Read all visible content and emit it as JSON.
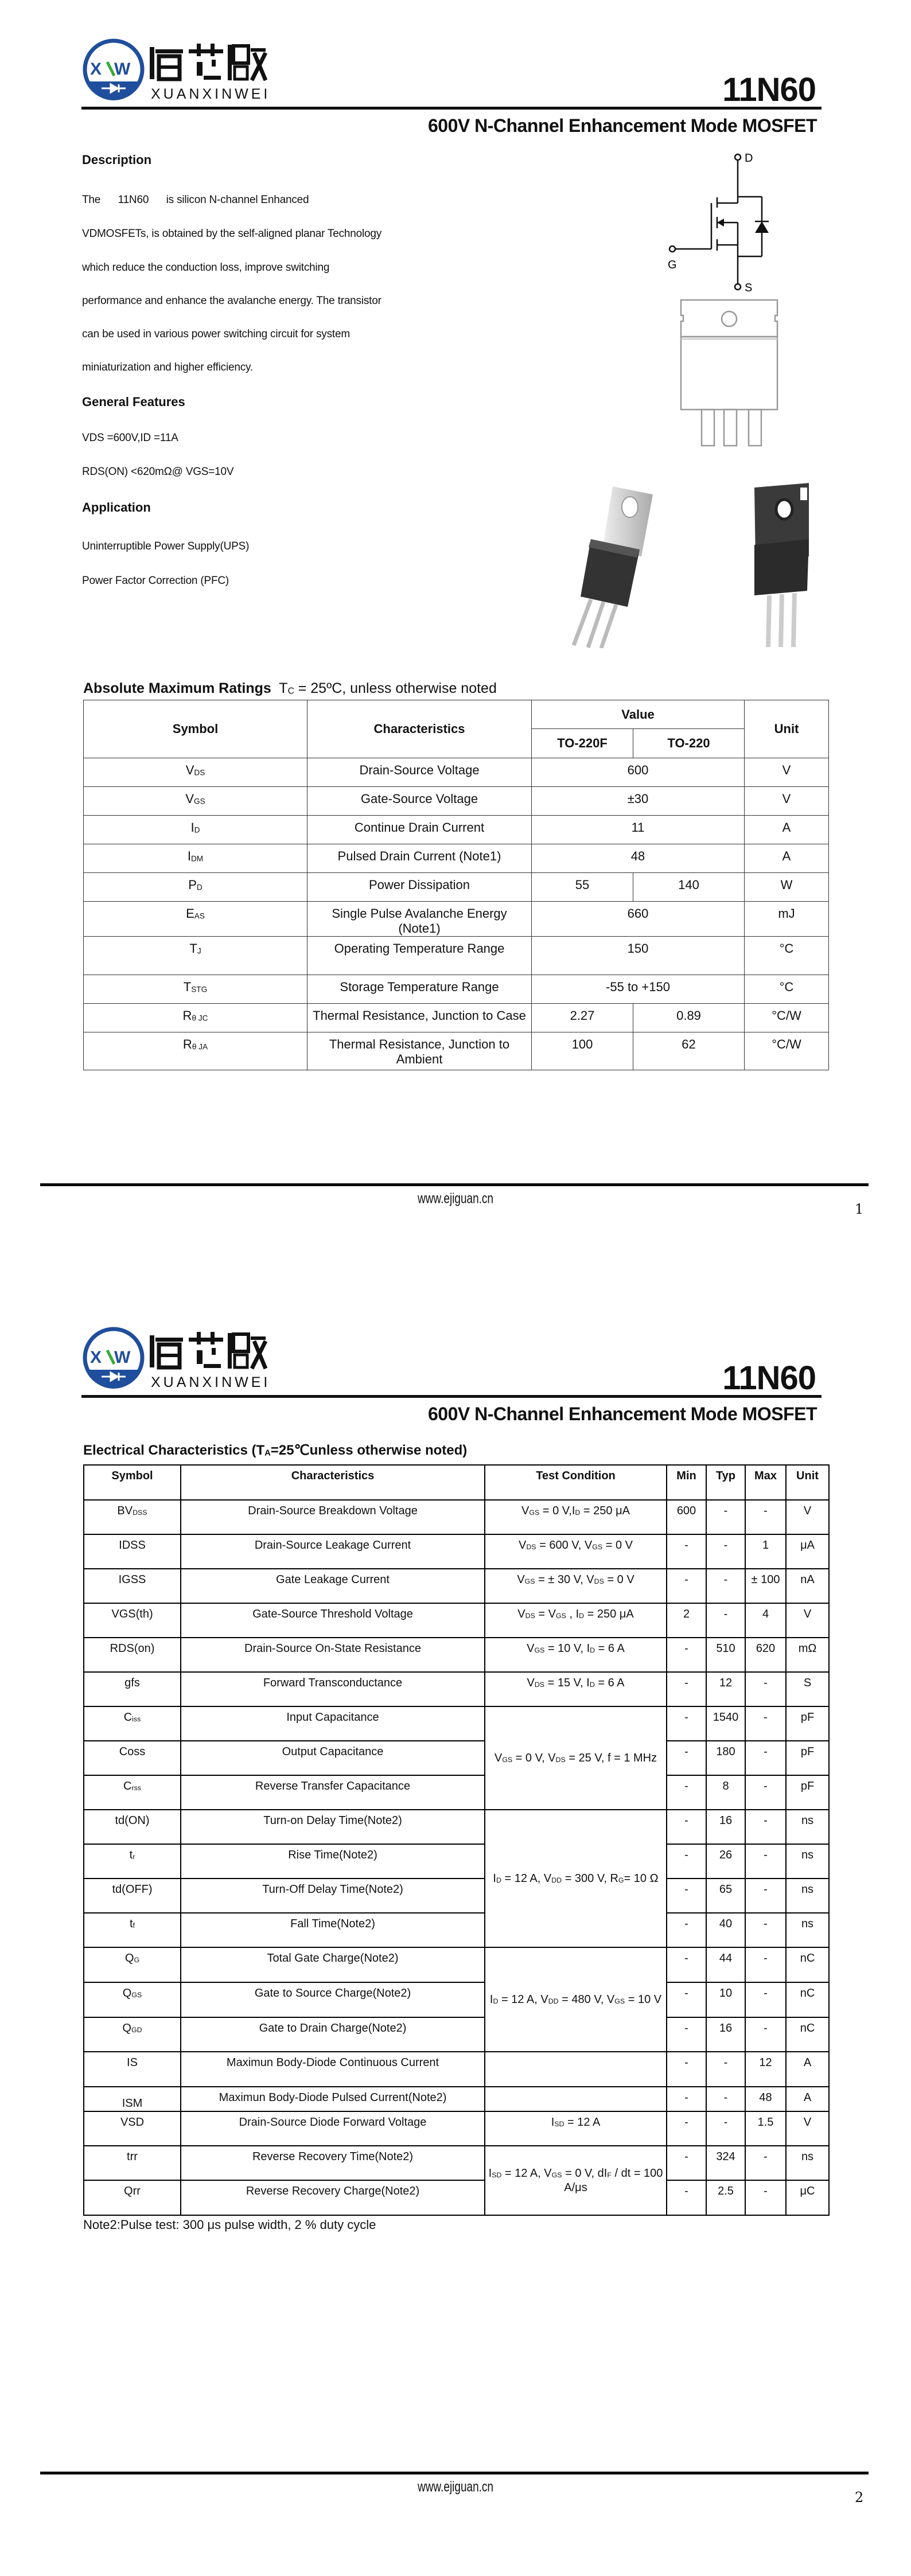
{
  "brand": {
    "logo_mark": "XW",
    "logo_cn": "烜芯微",
    "logo_en": "XUANXINWEI",
    "blue": "#1f4e9c",
    "green": "#3aa935"
  },
  "header": {
    "part_number": "11N60",
    "subtitle": "600V N-Channel Enhancement Mode MOSFET"
  },
  "page1": {
    "description_heading": "Description",
    "description_lines": [
      "The      11N60      is silicon N-channel Enhanced",
      "VDMOSFETs, is obtained by the self-aligned planar Technology",
      "which reduce the conduction loss, improve switching",
      "performance and enhance the avalanche energy. The transistor",
      "can be used in various power switching circuit for system",
      "miniaturization and higher efficiency."
    ],
    "features_heading": "General Features",
    "features": [
      "VDS =600V,ID =11A",
      "RDS(ON) <620mΩ@ VGS=10V"
    ],
    "application_heading": "Application",
    "applications": [
      "Uninterruptible Power Supply(UPS)",
      "Power Factor Correction (PFC)"
    ],
    "schematic": {
      "drain": "D",
      "gate": "G",
      "source": "S"
    },
    "amr": {
      "title": "Absolute Maximum Ratings",
      "condition_main": "T",
      "condition_sub": "C",
      "condition_rest": " = 25ºC, unless otherwise noted",
      "headers": {
        "symbol": "Symbol",
        "characteristics": "Characteristics",
        "value": "Value",
        "pkg1": "TO-220F",
        "pkg2": "TO-220",
        "unit": "Unit"
      },
      "rows": [
        {
          "sym": "V",
          "sub": "DS",
          "char": "Drain-Source Voltage",
          "values": [
            "600"
          ],
          "unit": "V"
        },
        {
          "sym": "V",
          "sub": "GS",
          "char": "Gate-Source Voltage",
          "values": [
            "±30"
          ],
          "unit": "V"
        },
        {
          "sym": "I",
          "sub": "D",
          "char": "Continue Drain Current",
          "values": [
            "11"
          ],
          "unit": "A"
        },
        {
          "sym": "I",
          "sub": "DM",
          "char": "Pulsed Drain Current (Note1)",
          "values": [
            "48"
          ],
          "unit": "A"
        },
        {
          "sym": "P",
          "sub": "D",
          "char": "Power Dissipation",
          "values": [
            "55",
            "140"
          ],
          "unit": "W"
        },
        {
          "sym": "E",
          "sub": "AS",
          "char": "Single Pulse Avalanche Energy (Note1)",
          "values": [
            "660"
          ],
          "unit": "mJ"
        },
        {
          "sym": "T",
          "sub": "J",
          "char": "Operating Temperature Range",
          "values": [
            "150"
          ],
          "unit": "°C"
        },
        {
          "sym": "T",
          "sub": "STG",
          "char": "Storage Temperature Range",
          "values": [
            "-55 to +150"
          ],
          "unit": "°C"
        },
        {
          "sym": "R",
          "sub": "θ JC",
          "char": "Thermal Resistance, Junction to Case",
          "values": [
            "2.27",
            "0.89"
          ],
          "unit": "°C/W"
        },
        {
          "sym": "R",
          "sub": "θ JA",
          "char": "Thermal Resistance, Junction to Ambient",
          "values": [
            "100",
            "62"
          ],
          "unit": "°C/W"
        }
      ]
    },
    "footer": {
      "url": "www.ejiguan.cn",
      "page": "1"
    }
  },
  "page2": {
    "ec": {
      "title": [
        {
          "t": "Electrical Characteristics (T"
        },
        {
          "s": "A"
        },
        {
          "t": "=25℃unless otherwise noted)"
        }
      ],
      "headers": [
        "Symbol",
        "Characteristics",
        "Test Condition",
        "Min",
        "Typ",
        "Max",
        "Unit"
      ],
      "rows": [
        {
          "sym": [
            {
              "t": "BV"
            },
            {
              "s": "DSS"
            }
          ],
          "char": "Drain-Source Breakdown Voltage",
          "cond": [
            {
              "t": "V"
            },
            {
              "s": "GS"
            },
            {
              "t": " = 0 V,I"
            },
            {
              "s": "D"
            },
            {
              "t": " = 250 μA"
            }
          ],
          "span": 1,
          "min": "600",
          "typ": "-",
          "max": "-",
          "unit": "V"
        },
        {
          "sym": [
            {
              "t": "IDSS"
            }
          ],
          "char": "Drain-Source Leakage Current",
          "cond": [
            {
              "t": "V"
            },
            {
              "s": "DS"
            },
            {
              "t": " = 600 V, V"
            },
            {
              "s": "GS"
            },
            {
              "t": " = 0 V"
            }
          ],
          "span": 1,
          "min": "-",
          "typ": "-",
          "max": "1",
          "unit": "μA"
        },
        {
          "sym": [
            {
              "t": "IGSS"
            }
          ],
          "char": "Gate Leakage Current",
          "cond": [
            {
              "t": "V"
            },
            {
              "s": "GS"
            },
            {
              "t": " = ± 30 V, V"
            },
            {
              "s": "DS"
            },
            {
              "t": " = 0 V"
            }
          ],
          "span": 1,
          "min": "-",
          "typ": "-",
          "max": "± 100",
          "unit": "nA"
        },
        {
          "sym": [
            {
              "t": "VGS(th)"
            }
          ],
          "char": "Gate-Source Threshold Voltage",
          "cond": [
            {
              "t": "V"
            },
            {
              "s": "DS"
            },
            {
              "t": " = V"
            },
            {
              "s": "GS"
            },
            {
              "t": " , I"
            },
            {
              "s": "D"
            },
            {
              "t": "  = 250 μA"
            }
          ],
          "span": 1,
          "min": "2",
          "typ": "-",
          "max": "4",
          "unit": "V"
        },
        {
          "sym": [
            {
              "t": "RDS(on)"
            }
          ],
          "char": "Drain-Source On-State Resistance",
          "cond": [
            {
              "t": "V"
            },
            {
              "s": "GS"
            },
            {
              "t": " = 10 V, I"
            },
            {
              "s": "D"
            },
            {
              "t": " = 6 A"
            }
          ],
          "span": 1,
          "min": "-",
          "typ": "510",
          "max": "620",
          "unit": "mΩ"
        },
        {
          "sym": [
            {
              "t": "gfs"
            }
          ],
          "char": "Forward Transconductance",
          "cond": [
            {
              "t": "V"
            },
            {
              "s": "DS"
            },
            {
              "t": " = 15 V, I"
            },
            {
              "s": "D"
            },
            {
              "t": " = 6 A"
            }
          ],
          "span": 1,
          "min": "-",
          "typ": "12",
          "max": "-",
          "unit": "S"
        },
        {
          "sym": [
            {
              "t": "C"
            },
            {
              "s": "iss"
            }
          ],
          "char": "Input Capacitance",
          "cond": [
            {
              "t": "V"
            },
            {
              "s": "GS"
            },
            {
              "t": " = 0 V, V"
            },
            {
              "s": "DS"
            },
            {
              "t": " = 25 V,  f = 1 MHz"
            }
          ],
          "span": 3,
          "min": "-",
          "typ": "1540",
          "max": "-",
          "unit": "pF"
        },
        {
          "sym": [
            {
              "t": "Coss"
            }
          ],
          "char": "Output Capacitance",
          "cond": null,
          "min": "-",
          "typ": "180",
          "max": "-",
          "unit": "pF"
        },
        {
          "sym": [
            {
              "t": "C"
            },
            {
              "s": "rss"
            }
          ],
          "char": "Reverse Transfer Capacitance",
          "cond": null,
          "min": "-",
          "typ": "8",
          "max": "-",
          "unit": "pF"
        },
        {
          "sym": [
            {
              "t": "td(ON)"
            }
          ],
          "char": "Turn-on Delay Time(Note2)",
          "cond": [
            {
              "t": "I"
            },
            {
              "s": "D"
            },
            {
              "t": " = 12 A, V"
            },
            {
              "s": "DD"
            },
            {
              "t": " = 300 V, R"
            },
            {
              "s": "G"
            },
            {
              "t": "= 10 Ω"
            }
          ],
          "span": 4,
          "min": "-",
          "typ": "16",
          "max": "-",
          "unit": "ns"
        },
        {
          "sym": [
            {
              "t": "t"
            },
            {
              "s": "r"
            }
          ],
          "char": "Rise Time(Note2)",
          "cond": null,
          "min": "-",
          "typ": "26",
          "max": "-",
          "unit": "ns"
        },
        {
          "sym": [
            {
              "t": "td(OFF)"
            }
          ],
          "char": "Turn-Off Delay Time(Note2)",
          "cond": null,
          "min": "-",
          "typ": "65",
          "max": "-",
          "unit": "ns"
        },
        {
          "sym": [
            {
              "t": "t"
            },
            {
              "s": "f"
            }
          ],
          "char": "Fall Time(Note2)",
          "cond": null,
          "min": "-",
          "typ": "40",
          "max": "-",
          "unit": "ns"
        },
        {
          "sym": [
            {
              "t": "Q"
            },
            {
              "s": "G"
            }
          ],
          "char": "Total Gate Charge(Note2)",
          "cond": [
            {
              "t": "I"
            },
            {
              "s": "D"
            },
            {
              "t": " = 12 A, V"
            },
            {
              "s": "DD"
            },
            {
              "t": " = 480 V, V"
            },
            {
              "s": "GS"
            },
            {
              "t": " = 10 V"
            }
          ],
          "span": 3,
          "min": "-",
          "typ": "44",
          "max": "-",
          "unit": "nC"
        },
        {
          "sym": [
            {
              "t": "Q"
            },
            {
              "s": "GS"
            }
          ],
          "char": "Gate to Source Charge(Note2)",
          "cond": null,
          "min": "-",
          "typ": "10",
          "max": "-",
          "unit": "nC"
        },
        {
          "sym": [
            {
              "t": "Q"
            },
            {
              "s": "GD"
            }
          ],
          "char": "Gate to Drain Charge(Note2)",
          "cond": null,
          "min": "-",
          "typ": "16",
          "max": "-",
          "unit": "nC"
        },
        {
          "sym": [
            {
              "t": "IS"
            }
          ],
          "char": "Maximun Body-Diode Continuous Current",
          "cond": [],
          "span": 1,
          "min": "-",
          "typ": "-",
          "max": "12",
          "unit": "A"
        },
        {
          "sym": [
            {
              "t": "ISM"
            }
          ],
          "char": "Maximun Body-Diode  Pulsed Current(Note2)",
          "cond": [],
          "span": 1,
          "min": "-",
          "typ": "-",
          "max": "48",
          "unit": "A"
        },
        {
          "sym": [
            {
              "t": "VSD"
            }
          ],
          "char": "Drain-Source Diode Forward Voltage",
          "cond": [
            {
              "t": "I"
            },
            {
              "s": "SD"
            },
            {
              "t": "  = 12 A"
            }
          ],
          "span": 1,
          "min": "-",
          "typ": "-",
          "max": "1.5",
          "unit": "V"
        },
        {
          "sym": [
            {
              "t": "trr"
            }
          ],
          "char": "Reverse Recovery Time(Note2)",
          "cond": [
            {
              "t": "I"
            },
            {
              "s": "SD"
            },
            {
              "t": " = 12 A, V"
            },
            {
              "s": "GS"
            },
            {
              "t": " = 0 V, dI"
            },
            {
              "s": "F"
            },
            {
              "t": " / dt = 100 A/μs"
            }
          ],
          "span": 2,
          "min": "-",
          "typ": "324",
          "max": "-",
          "unit": "ns"
        },
        {
          "sym": [
            {
              "t": "Qrr"
            }
          ],
          "char": "Reverse Recovery Charge(Note2)",
          "cond": null,
          "min": "-",
          "typ": "2.5",
          "max": "-",
          "unit": "μC"
        }
      ],
      "note": "Note2:Pulse test: 300 μs pulse width, 2 % duty cycle"
    },
    "footer": {
      "url": "www.ejiguan.cn",
      "page": "2"
    }
  }
}
